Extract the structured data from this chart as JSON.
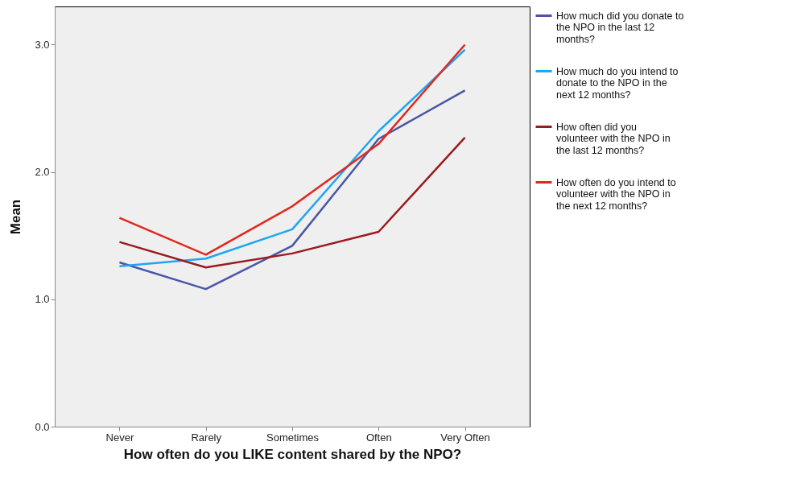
{
  "chart_data": {
    "type": "line",
    "xlabel": "How often do you LIKE content shared by the NPO?",
    "ylabel": "Mean",
    "categories": [
      "Never",
      "Rarely",
      "Sometimes",
      "Often",
      "Very Often"
    ],
    "series": [
      {
        "name": "How much did you donate to the NPO in the last 12 months?",
        "color": "#4a55a5",
        "values": [
          1.29,
          1.08,
          1.42,
          2.26,
          2.64
        ]
      },
      {
        "name": "How much do you intend to donate to the NPO in the next 12 months?",
        "color": "#1ea6f2",
        "values": [
          1.26,
          1.32,
          1.55,
          2.32,
          2.96
        ]
      },
      {
        "name": "How often did you volunteer with the NPO in the last 12 months?",
        "color": "#9b1a1e",
        "values": [
          1.45,
          1.25,
          1.36,
          1.53,
          2.27
        ]
      },
      {
        "name": "How often do you intend to volunteer with the NPO in the next 12 months?",
        "color": "#e0281e",
        "values": [
          1.64,
          1.35,
          1.73,
          2.22,
          3.0
        ]
      }
    ],
    "ylim": [
      0,
      3.3
    ],
    "yticks": [
      {
        "value": 0,
        "label": "0.0"
      },
      {
        "value": 1,
        "label": "1.0"
      },
      {
        "value": 2,
        "label": "2.0"
      },
      {
        "value": 3,
        "label": "3.0"
      }
    ],
    "grid": false,
    "legend": "top right",
    "marker": "none",
    "line_style": "solid"
  }
}
